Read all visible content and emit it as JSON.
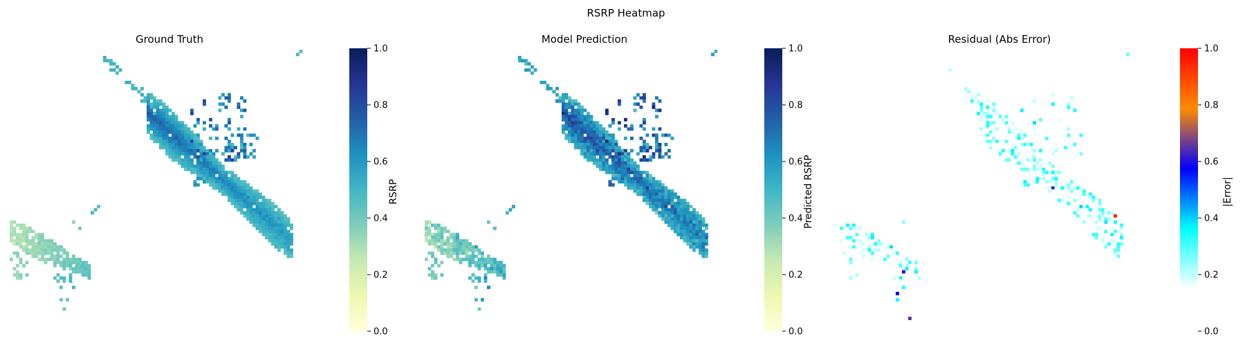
{
  "suptitle": "RSRP Heatmap",
  "chart_data": [
    {
      "type": "heatmap",
      "title": "Ground Truth",
      "colorbar_label": "RSRP",
      "colormap": "YlGnBu",
      "vmin": 0.0,
      "vmax": 1.0,
      "colorbar_ticks": [
        "0.0",
        "0.2",
        "0.4",
        "0.6",
        "0.8",
        "1.0"
      ],
      "colorbar_tick_values": [
        0.0,
        0.2,
        0.4,
        0.6,
        0.8,
        1.0
      ],
      "regions": [
        {
          "name": "main-diagonal-core",
          "approx_value": 0.72
        },
        {
          "name": "main-diagonal-tail",
          "approx_value": 0.55
        },
        {
          "name": "lower-left-cluster",
          "approx_value": 0.35
        }
      ]
    },
    {
      "type": "heatmap",
      "title": "Model Prediction",
      "colorbar_label": "Predicted RSRP",
      "colormap": "YlGnBu",
      "vmin": 0.0,
      "vmax": 1.0,
      "colorbar_ticks": [
        "0.0",
        "0.2",
        "0.4",
        "0.6",
        "0.8",
        "1.0"
      ],
      "colorbar_tick_values": [
        0.0,
        0.2,
        0.4,
        0.6,
        0.8,
        1.0
      ],
      "regions": [
        {
          "name": "main-diagonal-core",
          "approx_value": 0.75
        },
        {
          "name": "main-diagonal-tail",
          "approx_value": 0.5
        },
        {
          "name": "lower-left-cluster",
          "approx_value": 0.4
        }
      ]
    },
    {
      "type": "heatmap",
      "title": "Residual (Abs Error)",
      "colorbar_label": "|Error|",
      "colormap": "jet-like",
      "vmin": 0.15,
      "vmax": 1.0,
      "colorbar_ticks": [
        "0.0",
        "0.2",
        "0.4",
        "0.6",
        "0.8",
        "1.0"
      ],
      "colorbar_tick_values": [
        0.0,
        0.2,
        0.4,
        0.6,
        0.8,
        1.0
      ],
      "regions": [
        {
          "name": "main-diagonal",
          "approx_value": 0.3
        },
        {
          "name": "lower-left-cluster",
          "approx_value": 0.3
        }
      ]
    }
  ],
  "colors": {
    "ylgnbu": [
      "#ffffd9",
      "#edf8b1",
      "#c7e9b4",
      "#7fcdbb",
      "#41b6c4",
      "#1d91c0",
      "#225ea8",
      "#253494",
      "#081d58"
    ],
    "residual": [
      "#ffffff",
      "#00ffff",
      "#0000ff",
      "#ff8c00",
      "#ff0000"
    ]
  }
}
